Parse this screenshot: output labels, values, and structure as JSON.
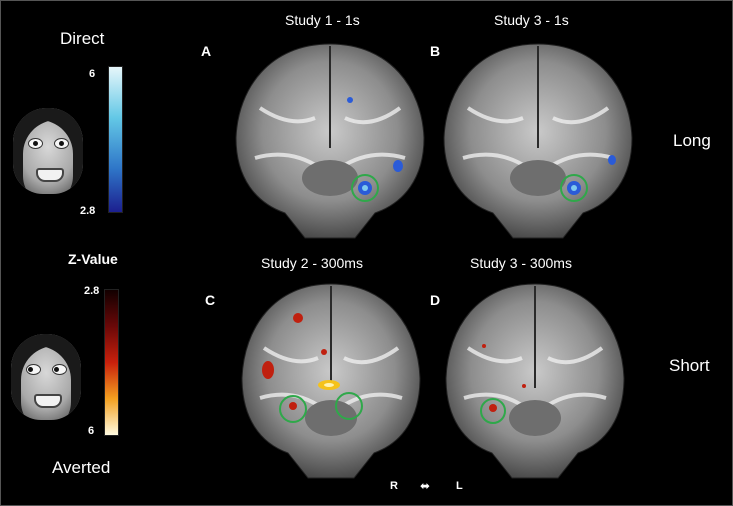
{
  "labels": {
    "direct": "Direct",
    "averted": "Averted",
    "zvalue": "Z-Value",
    "long": "Long",
    "short": "Short",
    "right": "R",
    "left": "L"
  },
  "colorbars": {
    "direct": {
      "max": "6",
      "min": "2.8",
      "top_color": "#e0f4f8",
      "bottom_color": "#1f1f96"
    },
    "averted": {
      "min": "2.8",
      "max": "6",
      "top_color": "#1a0000",
      "bottom_color": "#fffde6"
    }
  },
  "panels": [
    {
      "letter": "A",
      "title": "Study 1 - 1s"
    },
    {
      "letter": "B",
      "title": "Study 3 - 1s"
    },
    {
      "letter": "C",
      "title": "Study 2 - 300ms"
    },
    {
      "letter": "D",
      "title": "Study 3 - 300ms"
    }
  ],
  "colors": {
    "blue_activation": "#2a5bd8",
    "red_activation": "#c0200f",
    "yellow_activation": "#f5c21a",
    "roi_circle": "#2fa84a"
  }
}
